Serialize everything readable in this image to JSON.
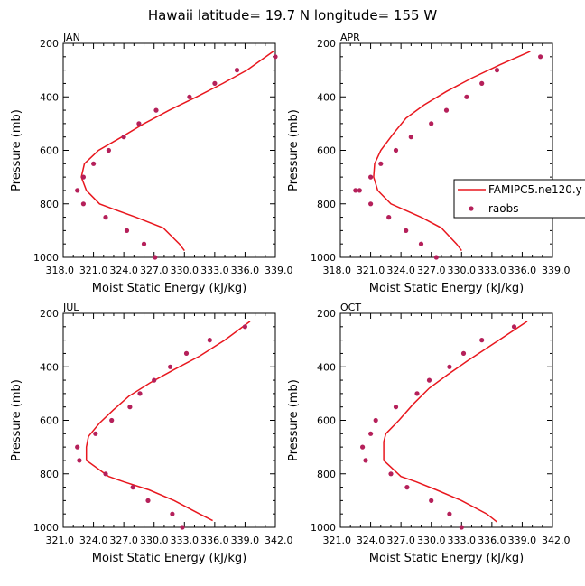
{
  "title": "Hawaii  latitude= 19.7 N longitude= 155 W",
  "colors": {
    "model": "#e8171e",
    "obs": "#b5205a",
    "axis": "#000000"
  },
  "legend": {
    "model_label": "FAMIPC5.ne120.y",
    "obs_label": "raobs"
  },
  "chart_data": [
    {
      "type": "line",
      "panel": "JAN",
      "xlabel": "Moist Static Energy (kJ/kg)",
      "ylabel": "Pressure (mb)",
      "xlim": [
        318.0,
        339.0
      ],
      "ylim": [
        1000,
        200
      ],
      "xticks": [
        318.0,
        321.0,
        324.0,
        327.0,
        330.0,
        333.0,
        336.0,
        339.0
      ],
      "xtick_labels": [
        "318.0",
        "321.0",
        "324.0",
        "327.0",
        "330.0",
        "333.0",
        "336.0",
        "339.0"
      ],
      "yticks": [
        200,
        400,
        600,
        800,
        1000
      ],
      "series": [
        {
          "name": "FAMIPC5.ne120.y",
          "style": "line",
          "x": [
            338.8,
            336.2,
            333.8,
            331.2,
            328.5,
            326.0,
            323.8,
            321.5,
            320.1,
            319.8,
            320.3,
            321.6,
            323.0,
            325.2,
            327.9,
            329.5,
            330.0
          ],
          "y": [
            230,
            300,
            350,
            400,
            450,
            500,
            550,
            600,
            650,
            700,
            750,
            800,
            820,
            850,
            890,
            950,
            975
          ]
        },
        {
          "name": "raobs",
          "style": "markers",
          "x": [
            339.0,
            335.2,
            333.0,
            330.5,
            327.2,
            325.5,
            324.0,
            322.5,
            321.0,
            320.0,
            319.4,
            320.0,
            322.2,
            324.3,
            326.0,
            327.1
          ],
          "y": [
            250,
            300,
            350,
            400,
            450,
            500,
            550,
            600,
            650,
            700,
            750,
            800,
            850,
            900,
            950,
            1000
          ]
        }
      ]
    },
    {
      "type": "line",
      "panel": "APR",
      "xlabel": "Moist Static Energy (kJ/kg)",
      "ylabel": "Pressure (mb)",
      "xlim": [
        318.0,
        339.0
      ],
      "ylim": [
        1000,
        200
      ],
      "xticks": [
        318.0,
        321.0,
        324.0,
        327.0,
        330.0,
        333.0,
        336.0,
        339.0
      ],
      "xtick_labels": [
        "318.0",
        "321.0",
        "324.0",
        "327.0",
        "330.0",
        "333.0",
        "336.0",
        "339.0"
      ],
      "yticks": [
        200,
        400,
        600,
        800,
        1000
      ],
      "series": [
        {
          "name": "FAMIPC5.ne120.y",
          "style": "line",
          "x": [
            336.8,
            333.8,
            331.0,
            328.5,
            326.3,
            324.5,
            323.2,
            322.0,
            321.4,
            321.3,
            321.7,
            323.0,
            324.2,
            326.0,
            328.0,
            329.5,
            330.0
          ],
          "y": [
            230,
            280,
            330,
            380,
            430,
            480,
            540,
            600,
            650,
            700,
            750,
            800,
            820,
            850,
            890,
            950,
            975
          ]
        },
        {
          "name": "raobs",
          "style": "markers",
          "x": [
            337.8,
            333.5,
            332.0,
            330.5,
            328.5,
            327.0,
            325.0,
            323.5,
            322.0,
            321.0,
            319.9,
            319.5,
            321.0,
            322.8,
            324.5,
            326.0,
            327.5
          ],
          "y": [
            250,
            300,
            350,
            400,
            450,
            500,
            550,
            600,
            650,
            700,
            750,
            750,
            800,
            850,
            900,
            950,
            1000
          ]
        }
      ]
    },
    {
      "type": "line",
      "panel": "JUL",
      "xlabel": "Moist Static Energy (kJ/kg)",
      "ylabel": "Pressure (mb)",
      "xlim": [
        321.0,
        342.0
      ],
      "ylim": [
        1000,
        200
      ],
      "xticks": [
        321.0,
        324.0,
        327.0,
        330.0,
        333.0,
        336.0,
        339.0,
        342.0
      ],
      "xtick_labels": [
        "321.0",
        "324.0",
        "327.0",
        "330.0",
        "333.0",
        "336.0",
        "339.0",
        "342.0"
      ],
      "yticks": [
        200,
        400,
        600,
        800,
        1000
      ],
      "series": [
        {
          "name": "FAMIPC5.ne120.y",
          "style": "line",
          "x": [
            339.5,
            337.0,
            334.5,
            332.0,
            329.6,
            327.5,
            326.0,
            324.6,
            323.5,
            323.3,
            323.3,
            325.5,
            327.0,
            329.5,
            332.0,
            334.5,
            335.8
          ],
          "y": [
            230,
            300,
            360,
            410,
            460,
            510,
            560,
            610,
            660,
            700,
            750,
            810,
            830,
            860,
            900,
            950,
            975
          ]
        },
        {
          "name": "raobs",
          "style": "markers",
          "x": [
            339.0,
            335.5,
            333.2,
            331.6,
            330.0,
            328.6,
            327.6,
            325.8,
            324.2,
            322.4,
            322.6,
            325.2,
            327.9,
            329.4,
            331.8,
            332.8
          ],
          "y": [
            250,
            300,
            350,
            400,
            450,
            500,
            550,
            600,
            650,
            700,
            750,
            800,
            850,
            900,
            950,
            1000
          ]
        }
      ]
    },
    {
      "type": "line",
      "panel": "OCT",
      "xlabel": "Moist Static Energy (kJ/kg)",
      "ylabel": "Pressure (mb)",
      "xlim": [
        321.0,
        342.0
      ],
      "ylim": [
        1000,
        200
      ],
      "xticks": [
        321.0,
        324.0,
        327.0,
        330.0,
        333.0,
        336.0,
        339.0,
        342.0
      ],
      "xtick_labels": [
        "321.0",
        "324.0",
        "327.0",
        "330.0",
        "333.0",
        "336.0",
        "339.0",
        "342.0"
      ],
      "yticks": [
        200,
        400,
        600,
        800,
        1000
      ],
      "series": [
        {
          "name": "FAMIPC5.ne120.y",
          "style": "line",
          "x": [
            339.5,
            337.5,
            335.5,
            333.5,
            331.6,
            329.8,
            328.2,
            326.8,
            325.5,
            325.3,
            325.3,
            327.0,
            328.5,
            330.5,
            333.0,
            335.5,
            336.5
          ],
          "y": [
            230,
            280,
            330,
            380,
            430,
            480,
            540,
            600,
            650,
            680,
            750,
            810,
            830,
            860,
            900,
            950,
            980
          ]
        },
        {
          "name": "raobs",
          "style": "markers",
          "x": [
            338.2,
            335.0,
            333.2,
            331.8,
            329.8,
            328.6,
            326.5,
            324.5,
            324.0,
            323.2,
            323.5,
            326.0,
            327.6,
            330.0,
            331.8,
            333.0
          ],
          "y": [
            250,
            300,
            350,
            400,
            450,
            500,
            550,
            600,
            650,
            700,
            750,
            800,
            850,
            900,
            950,
            1000
          ]
        }
      ]
    }
  ]
}
